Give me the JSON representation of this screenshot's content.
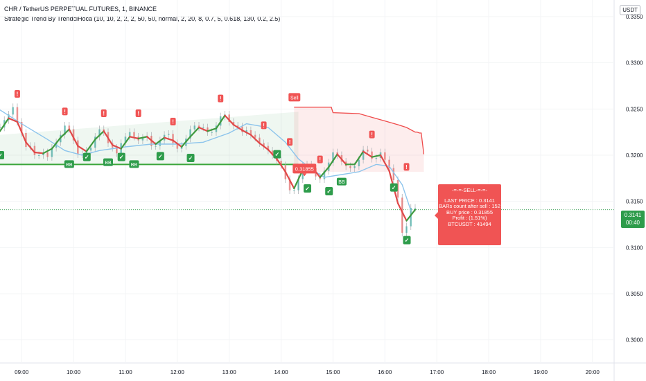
{
  "header": {
    "symbol_line": "CHR / TetherUS PERPETUAL FUTURES, 1, BINANCE",
    "indicator_line": "Strategic Trend By TrendciHoca (10, 10, 2, 2, 2, 50, 50, normal, 2, 20, 8, 0.7, 5, 0.618, 130, 0.2, 2.5)",
    "currency_button": "USDT"
  },
  "price_axis": {
    "ticks": [
      "0.3350",
      "0.3300",
      "0.3250",
      "0.3200",
      "0.3150",
      "0.3100",
      "0.3050",
      "0.3000"
    ],
    "last_price": "0.3141",
    "countdown": "00:40"
  },
  "time_axis": {
    "ticks": [
      "09:00",
      "10:00",
      "11:00",
      "12:00",
      "13:00",
      "14:00",
      "15:00",
      "16:00",
      "17:00",
      "18:00",
      "19:00",
      "20:00"
    ]
  },
  "sell_info": {
    "header": "-=-=-SELL-=-=-",
    "lines": [
      "LAST PRICE : 0.3141",
      "BARs count after sell : 152",
      "BUY price : 0.31855",
      "Profit : (1.51%)",
      "BTCUSDT : 41494"
    ]
  },
  "markers": {
    "sell_label": "Sell",
    "sell_price": "0.31855",
    "bb_label": "BB",
    "warning_glyph": "!",
    "check_glyph": "✓"
  },
  "colors": {
    "up": "#26a69a",
    "down": "#ef5350",
    "trend_up": "#3f9a3f",
    "trend_down": "#e04848",
    "ma": "#8cc4ec",
    "support": "#3aa53a",
    "resistance": "#ef4a4a",
    "last_price_line": "#2e9c4b"
  },
  "chart_data": {
    "type": "line",
    "x_range": [
      "08:35",
      "20:25"
    ],
    "y_range": [
      0.2975,
      0.3368
    ],
    "support_level": 0.319,
    "last_price": 0.3141,
    "sell_price": 0.31855,
    "series": [
      {
        "key": "close",
        "x": [
          "08:35",
          "08:40",
          "08:45",
          "08:50",
          "08:55",
          "09:00",
          "09:05",
          "09:10",
          "09:15",
          "09:20",
          "09:25",
          "09:30",
          "09:35",
          "09:40",
          "09:45",
          "09:50",
          "09:55",
          "10:00",
          "10:05",
          "10:10",
          "10:15",
          "10:20",
          "10:25",
          "10:30",
          "10:35",
          "10:40",
          "10:45",
          "10:50",
          "10:55",
          "11:00",
          "11:05",
          "11:10",
          "11:15",
          "11:20",
          "11:25",
          "11:30",
          "11:35",
          "11:40",
          "11:45",
          "11:50",
          "11:55",
          "12:00",
          "12:05",
          "12:10",
          "12:15",
          "12:20",
          "12:25",
          "12:30",
          "12:35",
          "12:40",
          "12:45",
          "12:50",
          "12:55",
          "13:00",
          "13:05",
          "13:10",
          "13:15",
          "13:20",
          "13:25",
          "13:30",
          "13:35",
          "13:40",
          "13:45",
          "13:50",
          "13:55",
          "14:00",
          "14:05",
          "14:10",
          "14:15",
          "14:20",
          "14:25",
          "14:30",
          "14:35",
          "14:40",
          "14:45",
          "14:50",
          "14:55",
          "15:00",
          "15:05",
          "15:10",
          "15:15",
          "15:20",
          "15:25",
          "15:30",
          "15:35",
          "15:40",
          "15:45",
          "15:50",
          "15:55",
          "16:00",
          "16:05",
          "16:10",
          "16:15",
          "16:20",
          "16:25",
          "16:30",
          "16:35"
        ],
        "values": [
          0.323,
          0.3238,
          0.3244,
          0.3252,
          0.3236,
          0.3224,
          0.3209,
          0.321,
          0.32,
          0.32,
          0.3203,
          0.3198,
          0.3208,
          0.3214,
          0.3222,
          0.3232,
          0.3228,
          0.3216,
          0.3201,
          0.3201,
          0.3205,
          0.3208,
          0.322,
          0.3228,
          0.3225,
          0.3213,
          0.3208,
          0.3202,
          0.3213,
          0.322,
          0.3225,
          0.322,
          0.3216,
          0.3219,
          0.3221,
          0.321,
          0.321,
          0.3216,
          0.3222,
          0.3223,
          0.3213,
          0.3207,
          0.321,
          0.3218,
          0.3228,
          0.3232,
          0.323,
          0.323,
          0.3225,
          0.3225,
          0.3232,
          0.3242,
          0.3244,
          0.3236,
          0.3232,
          0.3231,
          0.3225,
          0.3227,
          0.3222,
          0.3219,
          0.3213,
          0.321,
          0.3205,
          0.32,
          0.3194,
          0.3189,
          0.3174,
          0.3162,
          0.3162,
          0.3174,
          0.3188,
          0.319,
          0.3186,
          0.3177,
          0.3174,
          0.3183,
          0.3192,
          0.3203,
          0.32,
          0.3193,
          0.3188,
          0.3186,
          0.3188,
          0.3195,
          0.3206,
          0.3204,
          0.3196,
          0.3197,
          0.3203,
          0.3195,
          0.3186,
          0.3173,
          0.3154,
          0.3116,
          0.3123,
          0.3143,
          0.3143
        ]
      },
      {
        "key": "trend",
        "x": [
          "08:35",
          "08:45",
          "08:55",
          "09:05",
          "09:15",
          "09:25",
          "09:35",
          "09:45",
          "09:55",
          "10:05",
          "10:15",
          "10:25",
          "10:35",
          "10:45",
          "10:55",
          "11:05",
          "11:15",
          "11:25",
          "11:35",
          "11:45",
          "11:55",
          "12:05",
          "12:15",
          "12:25",
          "12:35",
          "12:45",
          "12:55",
          "13:05",
          "13:15",
          "13:25",
          "13:35",
          "13:45",
          "13:55",
          "14:05",
          "14:15",
          "14:25",
          "14:35",
          "14:45",
          "14:55",
          "15:05",
          "15:15",
          "15:25",
          "15:35",
          "15:45",
          "15:55",
          "16:05",
          "16:15",
          "16:25",
          "16:35"
        ],
        "values": [
          0.3226,
          0.324,
          0.3236,
          0.3214,
          0.3203,
          0.3202,
          0.3207,
          0.3219,
          0.3228,
          0.321,
          0.3204,
          0.3217,
          0.3226,
          0.3211,
          0.3207,
          0.322,
          0.3218,
          0.322,
          0.3212,
          0.3219,
          0.3216,
          0.3209,
          0.322,
          0.323,
          0.3226,
          0.3229,
          0.3243,
          0.3233,
          0.3227,
          0.3222,
          0.3213,
          0.3206,
          0.3196,
          0.3182,
          0.3164,
          0.3184,
          0.3188,
          0.3176,
          0.3187,
          0.3201,
          0.319,
          0.319,
          0.3204,
          0.3198,
          0.32,
          0.3183,
          0.3148,
          0.3129,
          0.3141
        ]
      },
      {
        "key": "moving_average",
        "x": [
          "08:35",
          "09:00",
          "09:30",
          "09:50",
          "10:10",
          "10:30",
          "11:00",
          "11:30",
          "12:00",
          "12:30",
          "13:00",
          "13:20",
          "13:45",
          "14:05",
          "14:20",
          "14:35",
          "14:50",
          "15:10",
          "15:30",
          "15:50",
          "16:05",
          "16:20",
          "16:30"
        ],
        "values": [
          0.3249,
          0.3234,
          0.3217,
          0.3205,
          0.32,
          0.3205,
          0.3209,
          0.3212,
          0.3212,
          0.3214,
          0.3224,
          0.3234,
          0.323,
          0.3214,
          0.3196,
          0.3185,
          0.3176,
          0.3179,
          0.3182,
          0.319,
          0.3188,
          0.3168,
          0.314
        ]
      },
      {
        "key": "resistance_stop",
        "x": [
          "14:15",
          "14:58",
          "15:00",
          "15:30",
          "15:45",
          "16:00",
          "16:15",
          "16:25",
          "16:35",
          "16:37",
          "16:40",
          "16:42",
          "16:45"
        ],
        "values": [
          0.3252,
          0.3252,
          0.3246,
          0.3245,
          0.3241,
          0.3237,
          0.3233,
          0.323,
          0.3225,
          0.3225,
          0.3224,
          0.3224,
          0.3201
        ]
      }
    ],
    "sell_markers": [
      {
        "x": "08:55",
        "price": 0.3266
      },
      {
        "x": "09:50",
        "price": 0.3247
      },
      {
        "x": "10:35",
        "price": 0.3245
      },
      {
        "x": "11:15",
        "price": 0.3245
      },
      {
        "x": "11:55",
        "price": 0.3236
      },
      {
        "x": "12:50",
        "price": 0.3261
      },
      {
        "x": "13:40",
        "price": 0.3232
      },
      {
        "x": "14:10",
        "price": 0.3214
      },
      {
        "x": "14:45",
        "price": 0.3195
      },
      {
        "x": "15:45",
        "price": 0.3222
      },
      {
        "x": "16:25",
        "price": 0.3187
      }
    ],
    "buy_markers": [
      {
        "x": "08:35",
        "price": 0.32
      },
      {
        "x": "10:15",
        "price": 0.3198
      },
      {
        "x": "10:55",
        "price": 0.3198
      },
      {
        "x": "11:40",
        "price": 0.3199
      },
      {
        "x": "12:15",
        "price": 0.3197
      },
      {
        "x": "13:55",
        "price": 0.3201
      },
      {
        "x": "14:30",
        "price": 0.3164
      },
      {
        "x": "14:55",
        "price": 0.3161
      },
      {
        "x": "16:10",
        "price": 0.3165
      },
      {
        "x": "16:25",
        "price": 0.3108
      }
    ],
    "bb_markers": [
      {
        "x": "09:55",
        "price": 0.319
      },
      {
        "x": "10:40",
        "price": 0.3192
      },
      {
        "x": "11:10",
        "price": 0.319
      },
      {
        "x": "15:10",
        "price": 0.3171
      }
    ],
    "sell_signal": {
      "x": "14:15",
      "price": 0.3262
    }
  }
}
